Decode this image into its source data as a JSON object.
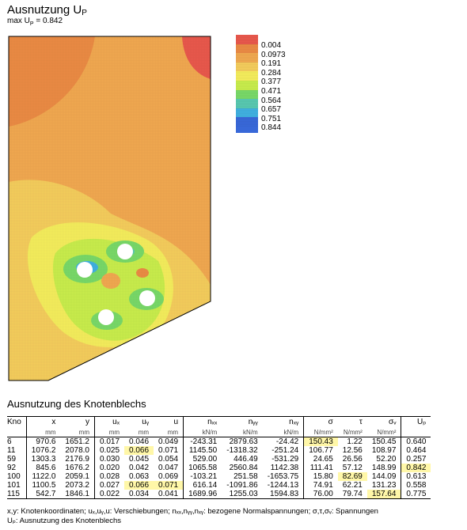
{
  "header": {
    "title_main": "Ausnutzung U",
    "title_sub": "P",
    "subtitle_prefix": "max U",
    "subtitle_sub": "P",
    "subtitle_value": " = 0.842"
  },
  "legend": {
    "labels": [
      "0.004",
      "0.0973",
      "0.191",
      "0.284",
      "0.377",
      "0.471",
      "0.564",
      "0.657",
      "0.751",
      "0.844"
    ],
    "colors": [
      "#e8584c",
      "#ea8a44",
      "#f0a850",
      "#f4cc5c",
      "#f4ec5c",
      "#c8ec4c",
      "#78d868",
      "#58c8b0",
      "#40b0e0",
      "#3868d8"
    ]
  },
  "plot": {
    "plate_fill": "#f0a850",
    "hole_color": "#ffffff"
  },
  "section_title": "Ausnutzung des Knotenblechs",
  "table": {
    "headers": [
      "Kno",
      "x",
      "y",
      "uₓ",
      "uᵧ",
      "u",
      "nₓₓ",
      "nᵧᵧ",
      "nₓᵧ",
      "σ",
      "τ",
      "σᵥ",
      "Uₚ"
    ],
    "units": [
      "",
      "mm",
      "mm",
      "mm",
      "mm",
      "mm",
      "kN/m",
      "kN/m",
      "kN/m",
      "N/mm²",
      "N/mm²",
      "N/mm²",
      ""
    ],
    "rows": [
      [
        "6",
        "970.6",
        "1651.2",
        "0.017",
        "0.046",
        "0.049",
        "-243.31",
        "2879.63",
        "-24.42",
        "150.43",
        "1.22",
        "150.45",
        "0.640"
      ],
      [
        "11",
        "1076.2",
        "2078.0",
        "0.025",
        "0.066",
        "0.071",
        "1145.50",
        "-1318.32",
        "-251.24",
        "106.77",
        "12.56",
        "108.97",
        "0.464"
      ],
      [
        "59",
        "1303.3",
        "2176.9",
        "0.030",
        "0.045",
        "0.054",
        "529.00",
        "446.49",
        "-531.29",
        "24.65",
        "26.56",
        "52.20",
        "0.257"
      ],
      [
        "92",
        "845.6",
        "1676.2",
        "0.020",
        "0.042",
        "0.047",
        "1065.58",
        "2560.84",
        "1142.38",
        "111.41",
        "57.12",
        "148.99",
        "0.842"
      ],
      [
        "100",
        "1122.0",
        "2059.1",
        "0.028",
        "0.063",
        "0.069",
        "-103.21",
        "251.58",
        "-1653.75",
        "15.80",
        "82.69",
        "144.09",
        "0.613"
      ],
      [
        "101",
        "1100.5",
        "2073.2",
        "0.027",
        "0.066",
        "0.071",
        "616.14",
        "-1091.86",
        "-1244.13",
        "74.91",
        "62.21",
        "131.23",
        "0.558"
      ],
      [
        "115",
        "542.7",
        "1846.1",
        "0.022",
        "0.034",
        "0.041",
        "1689.96",
        "1255.03",
        "1594.83",
        "76.00",
        "79.74",
        "157.64",
        "0.775"
      ]
    ],
    "highlight_color": "#fff7a8"
  },
  "footnotes": [
    "x,y: Knotenkoordinaten;   uₓ,uᵧ,u: Verschiebungen;   nₓₓ,nᵧᵧ,nₓᵧ: bezogene Normalspannungen;   σ,τ,σᵥ: Spannungen",
    "Uₚ: Ausnutzung des Knotenblechs"
  ]
}
